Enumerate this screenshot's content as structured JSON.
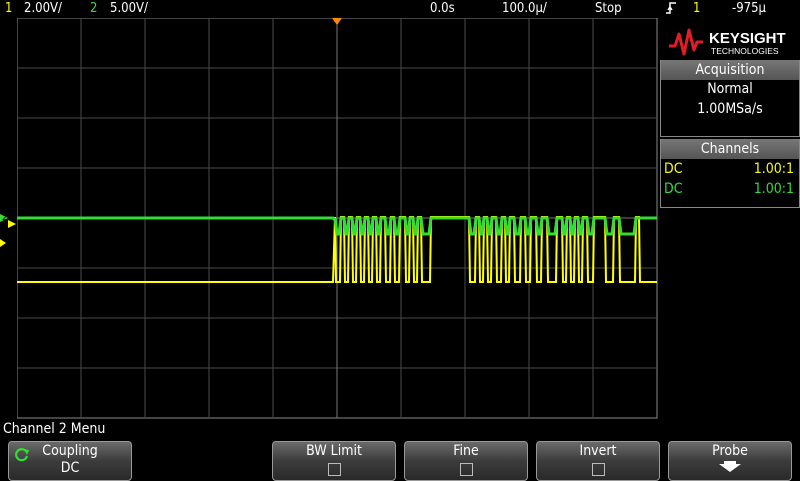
{
  "status_bar": {
    "ch1_num": "1",
    "ch1_scale": "2.00V/",
    "ch2_num": "2",
    "ch2_scale": "5.00V/",
    "time_position": "0.0s",
    "time_scale": "100.0µ/",
    "run_state": "Stop",
    "trigger_source": "1",
    "trigger_level": "-975µ"
  },
  "brand": {
    "name": "KEYSIGHT",
    "sub": "TECHNOLOGIES"
  },
  "acquisition": {
    "header": "Acquisition",
    "mode": "Normal",
    "rate": "1.00MSa/s"
  },
  "channels": {
    "header": "Channels",
    "rows": [
      {
        "coupling": "DC",
        "probe": "1.00:1",
        "color": "#ffff00"
      },
      {
        "coupling": "DC",
        "probe": "1.00:1",
        "color": "#33dd33"
      }
    ]
  },
  "menu_title": "Channel 2 Menu",
  "softkeys": {
    "coupling": {
      "label": "Coupling",
      "value": "DC"
    },
    "bw_limit": {
      "label": "BW Limit"
    },
    "fine": {
      "label": "Fine"
    },
    "invert": {
      "label": "Invert"
    },
    "probe": {
      "label": "Probe"
    }
  },
  "colors": {
    "ch1": "#ffff00",
    "ch2": "#33dd33",
    "trigger_marker": "#ff8c00",
    "grid": "#555555"
  }
}
